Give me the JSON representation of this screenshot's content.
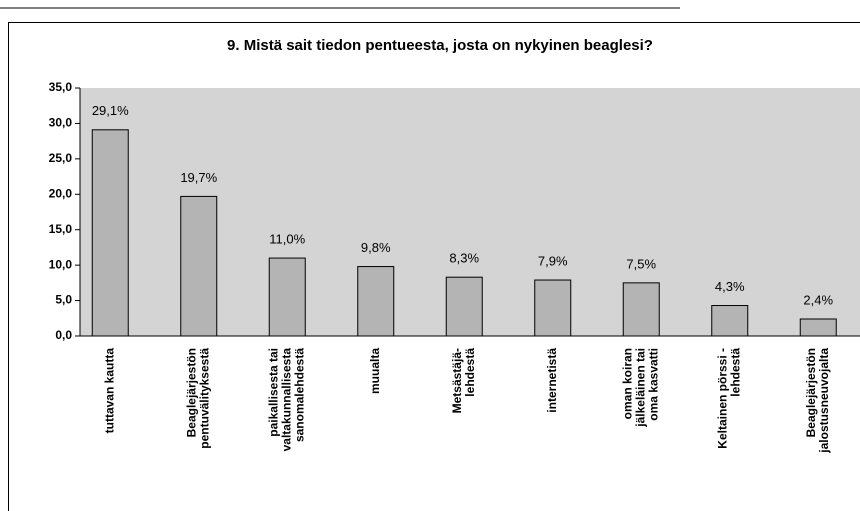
{
  "chart_data": {
    "type": "bar",
    "title": "9. Mistä sait tiedon pentueesta, josta on nykyinen beaglesi?",
    "categories": [
      [
        "tuttavan kautta"
      ],
      [
        "Beaglejärjestön",
        "pentuvälityksestä"
      ],
      [
        "paikallisesta tai",
        "valtakunnallisesta",
        "sanomalehdestä"
      ],
      [
        "muualta"
      ],
      [
        "Metsästäjä-",
        "lehdestä"
      ],
      [
        "internetistä"
      ],
      [
        "oman koiran",
        "jälkeläinen tai",
        "oma kasvatti"
      ],
      [
        "Keltainen pörssi -",
        "lehdestä"
      ],
      [
        "Beaglejärjestön",
        "jalostusneuvojalta"
      ]
    ],
    "values": [
      29.1,
      19.7,
      11.0,
      9.8,
      8.3,
      7.9,
      7.5,
      4.3,
      2.4
    ],
    "value_labels": [
      "29,1%",
      "19,7%",
      "11,0%",
      "9,8%",
      "8,3%",
      "7,9%",
      "7,5%",
      "4,3%",
      "2,4%"
    ],
    "color": "#b4b4b4",
    "ylim": [
      0,
      35
    ],
    "yticks": [
      {
        "value": 0,
        "label": "0,0"
      },
      {
        "value": 5,
        "label": "5,0"
      },
      {
        "value": 10,
        "label": "10,0"
      },
      {
        "value": 15,
        "label": "15,0"
      },
      {
        "value": 20,
        "label": "20,0"
      },
      {
        "value": 25,
        "label": "25,0"
      },
      {
        "value": 30,
        "label": "30,0"
      },
      {
        "value": 35,
        "label": "35,0"
      }
    ]
  }
}
